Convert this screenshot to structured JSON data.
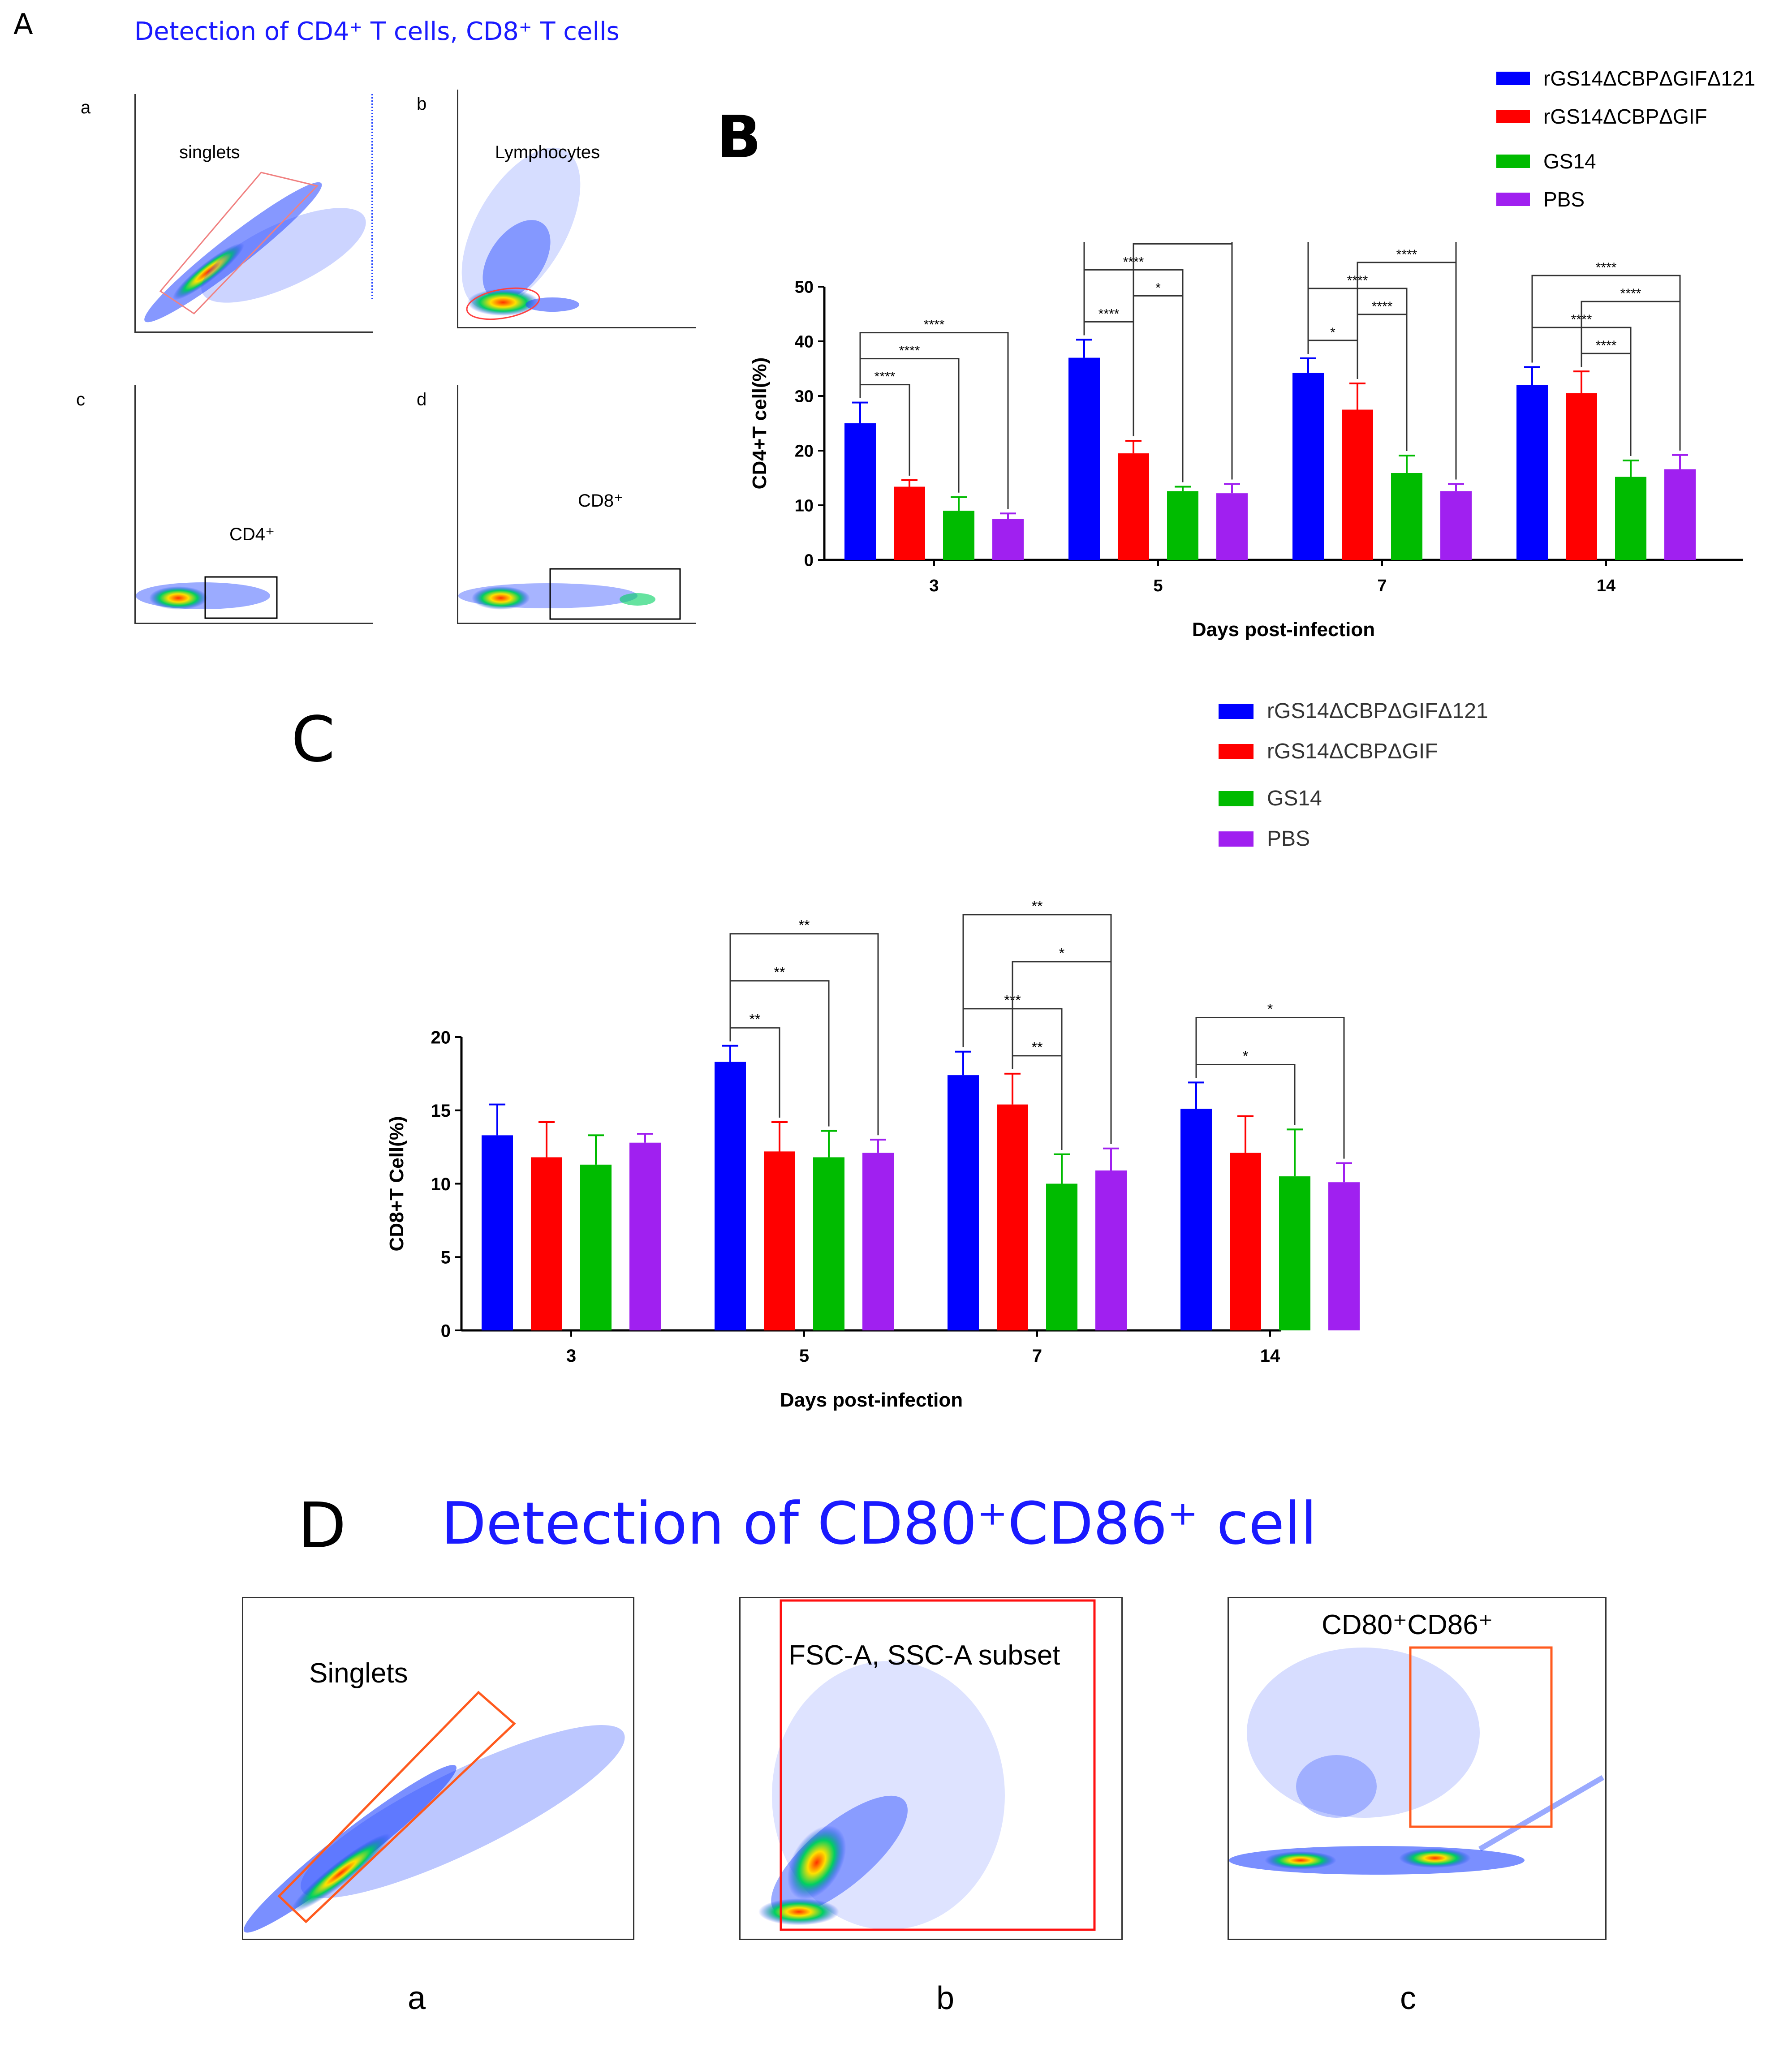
{
  "panelA": {
    "letter": "A",
    "title": "Detection of CD4⁺ T cells, CD8⁺ T cells",
    "subplots": [
      {
        "letter": "a",
        "gate": "singlets"
      },
      {
        "letter": "b",
        "gate": "Lymphocytes"
      },
      {
        "letter": "c",
        "gate": "CD4⁺"
      },
      {
        "letter": "d",
        "gate": "CD8⁺"
      }
    ]
  },
  "panelD": {
    "letter": "D",
    "title": "Detection of CD80⁺CD86⁺ cell",
    "subplots": [
      {
        "letter": "a",
        "gate": "Singlets"
      },
      {
        "letter": "b",
        "gate": "FSC-A, SSC-A subset"
      },
      {
        "letter": "c",
        "gate": "CD80⁺CD86⁺"
      }
    ]
  },
  "colors": {
    "blue": "#0000ff",
    "red": "#ff0000",
    "green": "#00bb00",
    "purple": "#a020f0",
    "title_blue": "#1a1aff"
  },
  "chart_data": [
    {
      "panel": "B",
      "type": "bar",
      "title": "",
      "xlabel": "Days post-infection",
      "ylabel": "CD4+T cell(%)",
      "ylim": [
        0,
        50
      ],
      "yticks": [
        0,
        10,
        20,
        30,
        40,
        50
      ],
      "categories": [
        "3",
        "5",
        "7",
        "14"
      ],
      "legend_position": "top-right",
      "series": [
        {
          "name": "rGS14ΔCBPΔGIFΔ121",
          "color": "#0000ff",
          "values": [
            25,
            37,
            34.2,
            32
          ],
          "errors": [
            3.8,
            3.3,
            2.7,
            3.3
          ]
        },
        {
          "name": "rGS14ΔCBPΔGIF",
          "color": "#ff0000",
          "values": [
            13.4,
            19.5,
            27.5,
            30.5
          ],
          "errors": [
            1.2,
            2.3,
            4.8,
            4
          ]
        },
        {
          "name": "GS14",
          "color": "#00bb00",
          "values": [
            9,
            12.6,
            15.9,
            15.2
          ],
          "errors": [
            2.5,
            0.8,
            3.2,
            3
          ]
        },
        {
          "name": "PBS",
          "color": "#a020f0",
          "values": [
            7.5,
            12.2,
            12.6,
            16.6
          ],
          "errors": [
            1,
            1.7,
            1.3,
            2.6
          ]
        }
      ],
      "significance": [
        {
          "group": 0,
          "from": 0,
          "to": 1,
          "label": "****"
        },
        {
          "group": 0,
          "from": 0,
          "to": 2,
          "label": "****"
        },
        {
          "group": 0,
          "from": 0,
          "to": 3,
          "label": "****"
        },
        {
          "group": 1,
          "from": 0,
          "to": 1,
          "label": "****"
        },
        {
          "group": 1,
          "from": 0,
          "to": 2,
          "label": "****"
        },
        {
          "group": 1,
          "from": 0,
          "to": 3,
          "label": "****"
        },
        {
          "group": 1,
          "from": 1,
          "to": 2,
          "label": "*"
        },
        {
          "group": 1,
          "from": 1,
          "to": 3,
          "label": "*"
        },
        {
          "group": 2,
          "from": 0,
          "to": 1,
          "label": "*"
        },
        {
          "group": 2,
          "from": 0,
          "to": 2,
          "label": "****"
        },
        {
          "group": 2,
          "from": 0,
          "to": 3,
          "label": "****"
        },
        {
          "group": 2,
          "from": 1,
          "to": 2,
          "label": "****"
        },
        {
          "group": 2,
          "from": 1,
          "to": 3,
          "label": "****"
        },
        {
          "group": 3,
          "from": 0,
          "to": 2,
          "label": "****"
        },
        {
          "group": 3,
          "from": 0,
          "to": 3,
          "label": "****"
        },
        {
          "group": 3,
          "from": 1,
          "to": 2,
          "label": "****"
        },
        {
          "group": 3,
          "from": 1,
          "to": 3,
          "label": "****"
        }
      ]
    },
    {
      "panel": "C",
      "type": "bar",
      "title": "",
      "xlabel": "Days post-infection",
      "ylabel": "CD8+T Cell(%)",
      "ylim": [
        0,
        20
      ],
      "yticks": [
        0,
        5,
        10,
        15,
        20
      ],
      "categories": [
        "3",
        "5",
        "7",
        "14"
      ],
      "legend_position": "top-right",
      "series": [
        {
          "name": "rGS14ΔCBPΔGIFΔ121",
          "color": "#0000ff",
          "values": [
            13.3,
            18.3,
            17.4,
            15.1
          ],
          "errors": [
            2.1,
            1.1,
            1.6,
            1.8
          ]
        },
        {
          "name": "rGS14ΔCBPΔGIF",
          "color": "#ff0000",
          "values": [
            11.8,
            12.2,
            15.4,
            12.1
          ],
          "errors": [
            2.4,
            2,
            2.1,
            2.5
          ]
        },
        {
          "name": "GS14",
          "color": "#00bb00",
          "values": [
            11.3,
            11.8,
            10,
            10.5
          ],
          "errors": [
            2,
            1.8,
            2,
            3.2
          ]
        },
        {
          "name": "PBS",
          "color": "#a020f0",
          "values": [
            12.8,
            12.1,
            10.9,
            10.1
          ],
          "errors": [
            0.6,
            0.9,
            1.5,
            1.3
          ]
        }
      ],
      "significance": [
        {
          "group": 1,
          "from": 0,
          "to": 1,
          "label": "**"
        },
        {
          "group": 1,
          "from": 0,
          "to": 2,
          "label": "**"
        },
        {
          "group": 1,
          "from": 0,
          "to": 3,
          "label": "**"
        },
        {
          "group": 2,
          "from": 0,
          "to": 2,
          "label": "***"
        },
        {
          "group": 2,
          "from": 0,
          "to": 3,
          "label": "**"
        },
        {
          "group": 2,
          "from": 1,
          "to": 2,
          "label": "**"
        },
        {
          "group": 2,
          "from": 1,
          "to": 3,
          "label": "*"
        },
        {
          "group": 3,
          "from": 0,
          "to": 2,
          "label": "*"
        },
        {
          "group": 3,
          "from": 0,
          "to": 3,
          "label": "*"
        }
      ]
    }
  ]
}
